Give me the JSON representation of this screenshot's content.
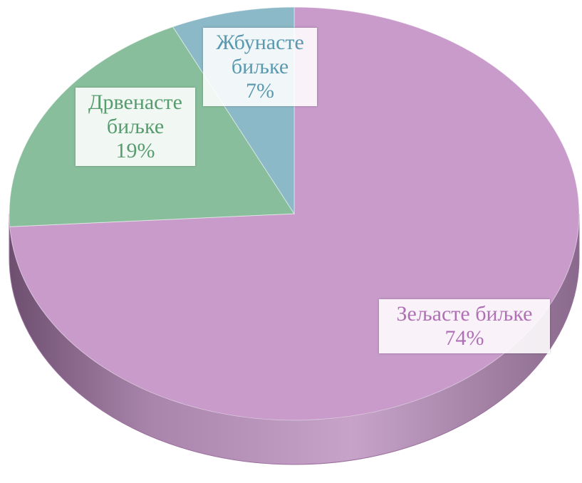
{
  "chart_data": {
    "type": "pie",
    "categories": [
      "Зељасте биљке",
      "Дрвенасте биљке",
      "Жбунасте биљке"
    ],
    "values": [
      74,
      19,
      7
    ],
    "value_labels": [
      "74%",
      "19%",
      "7%"
    ],
    "colors": [
      "#c596c8",
      "#82bb96",
      "#86b5c4"
    ]
  }
}
